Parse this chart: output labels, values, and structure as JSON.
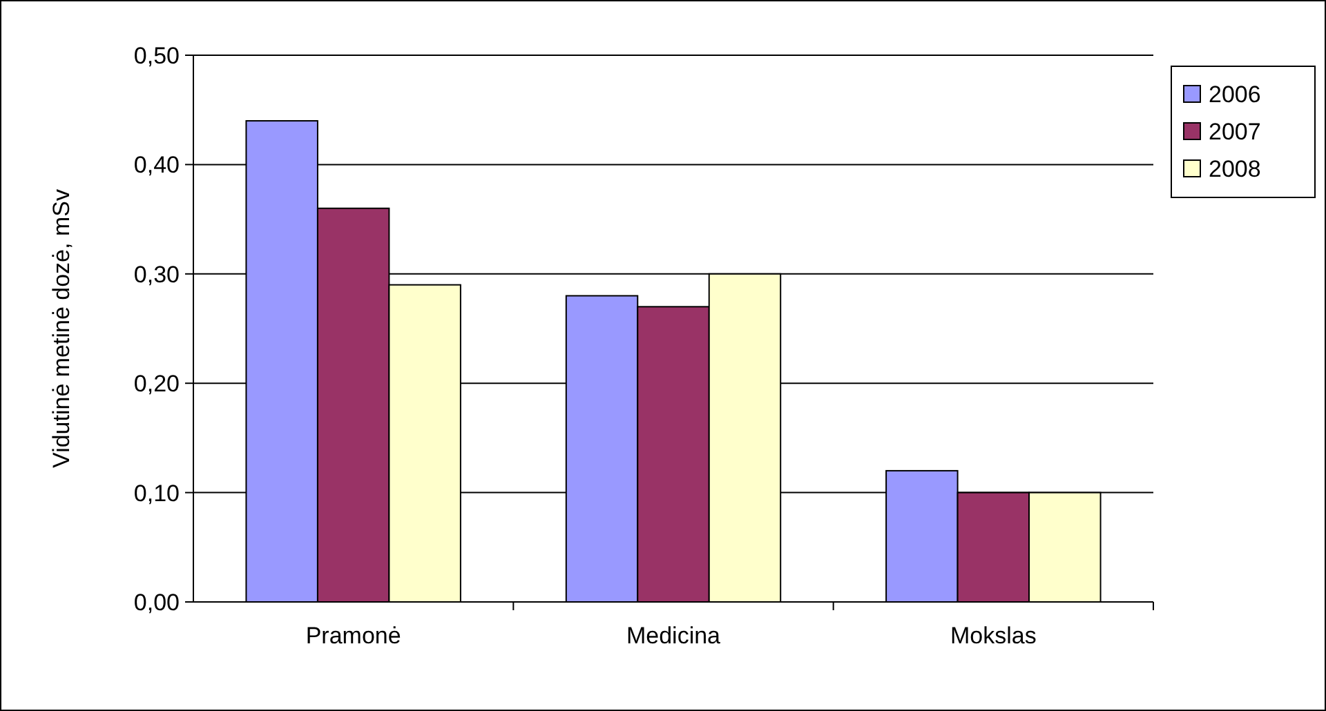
{
  "chart_data": {
    "type": "bar",
    "ylabel": "Vidutinė metinė dozė, mSv",
    "categories": [
      "Pramonė",
      "Medicina",
      "Mokslas"
    ],
    "series": [
      {
        "name": "2006",
        "color": "#9999ff",
        "values": [
          0.44,
          0.28,
          0.12
        ]
      },
      {
        "name": "2007",
        "color": "#993366",
        "values": [
          0.36,
          0.27,
          0.1
        ]
      },
      {
        "name": "2008",
        "color": "#ffffcc",
        "values": [
          0.29,
          0.3,
          0.1
        ]
      }
    ],
    "ylim": [
      0,
      0.5
    ],
    "yticks": [
      {
        "value": 0,
        "label": "0,00"
      },
      {
        "value": 0.1,
        "label": "0,10"
      },
      {
        "value": 0.2,
        "label": "0,20"
      },
      {
        "value": 0.3,
        "label": "0,30"
      },
      {
        "value": 0.4,
        "label": "0,40"
      },
      {
        "value": 0.5,
        "label": "0,50"
      }
    ],
    "grid": "y",
    "legend": "right"
  }
}
